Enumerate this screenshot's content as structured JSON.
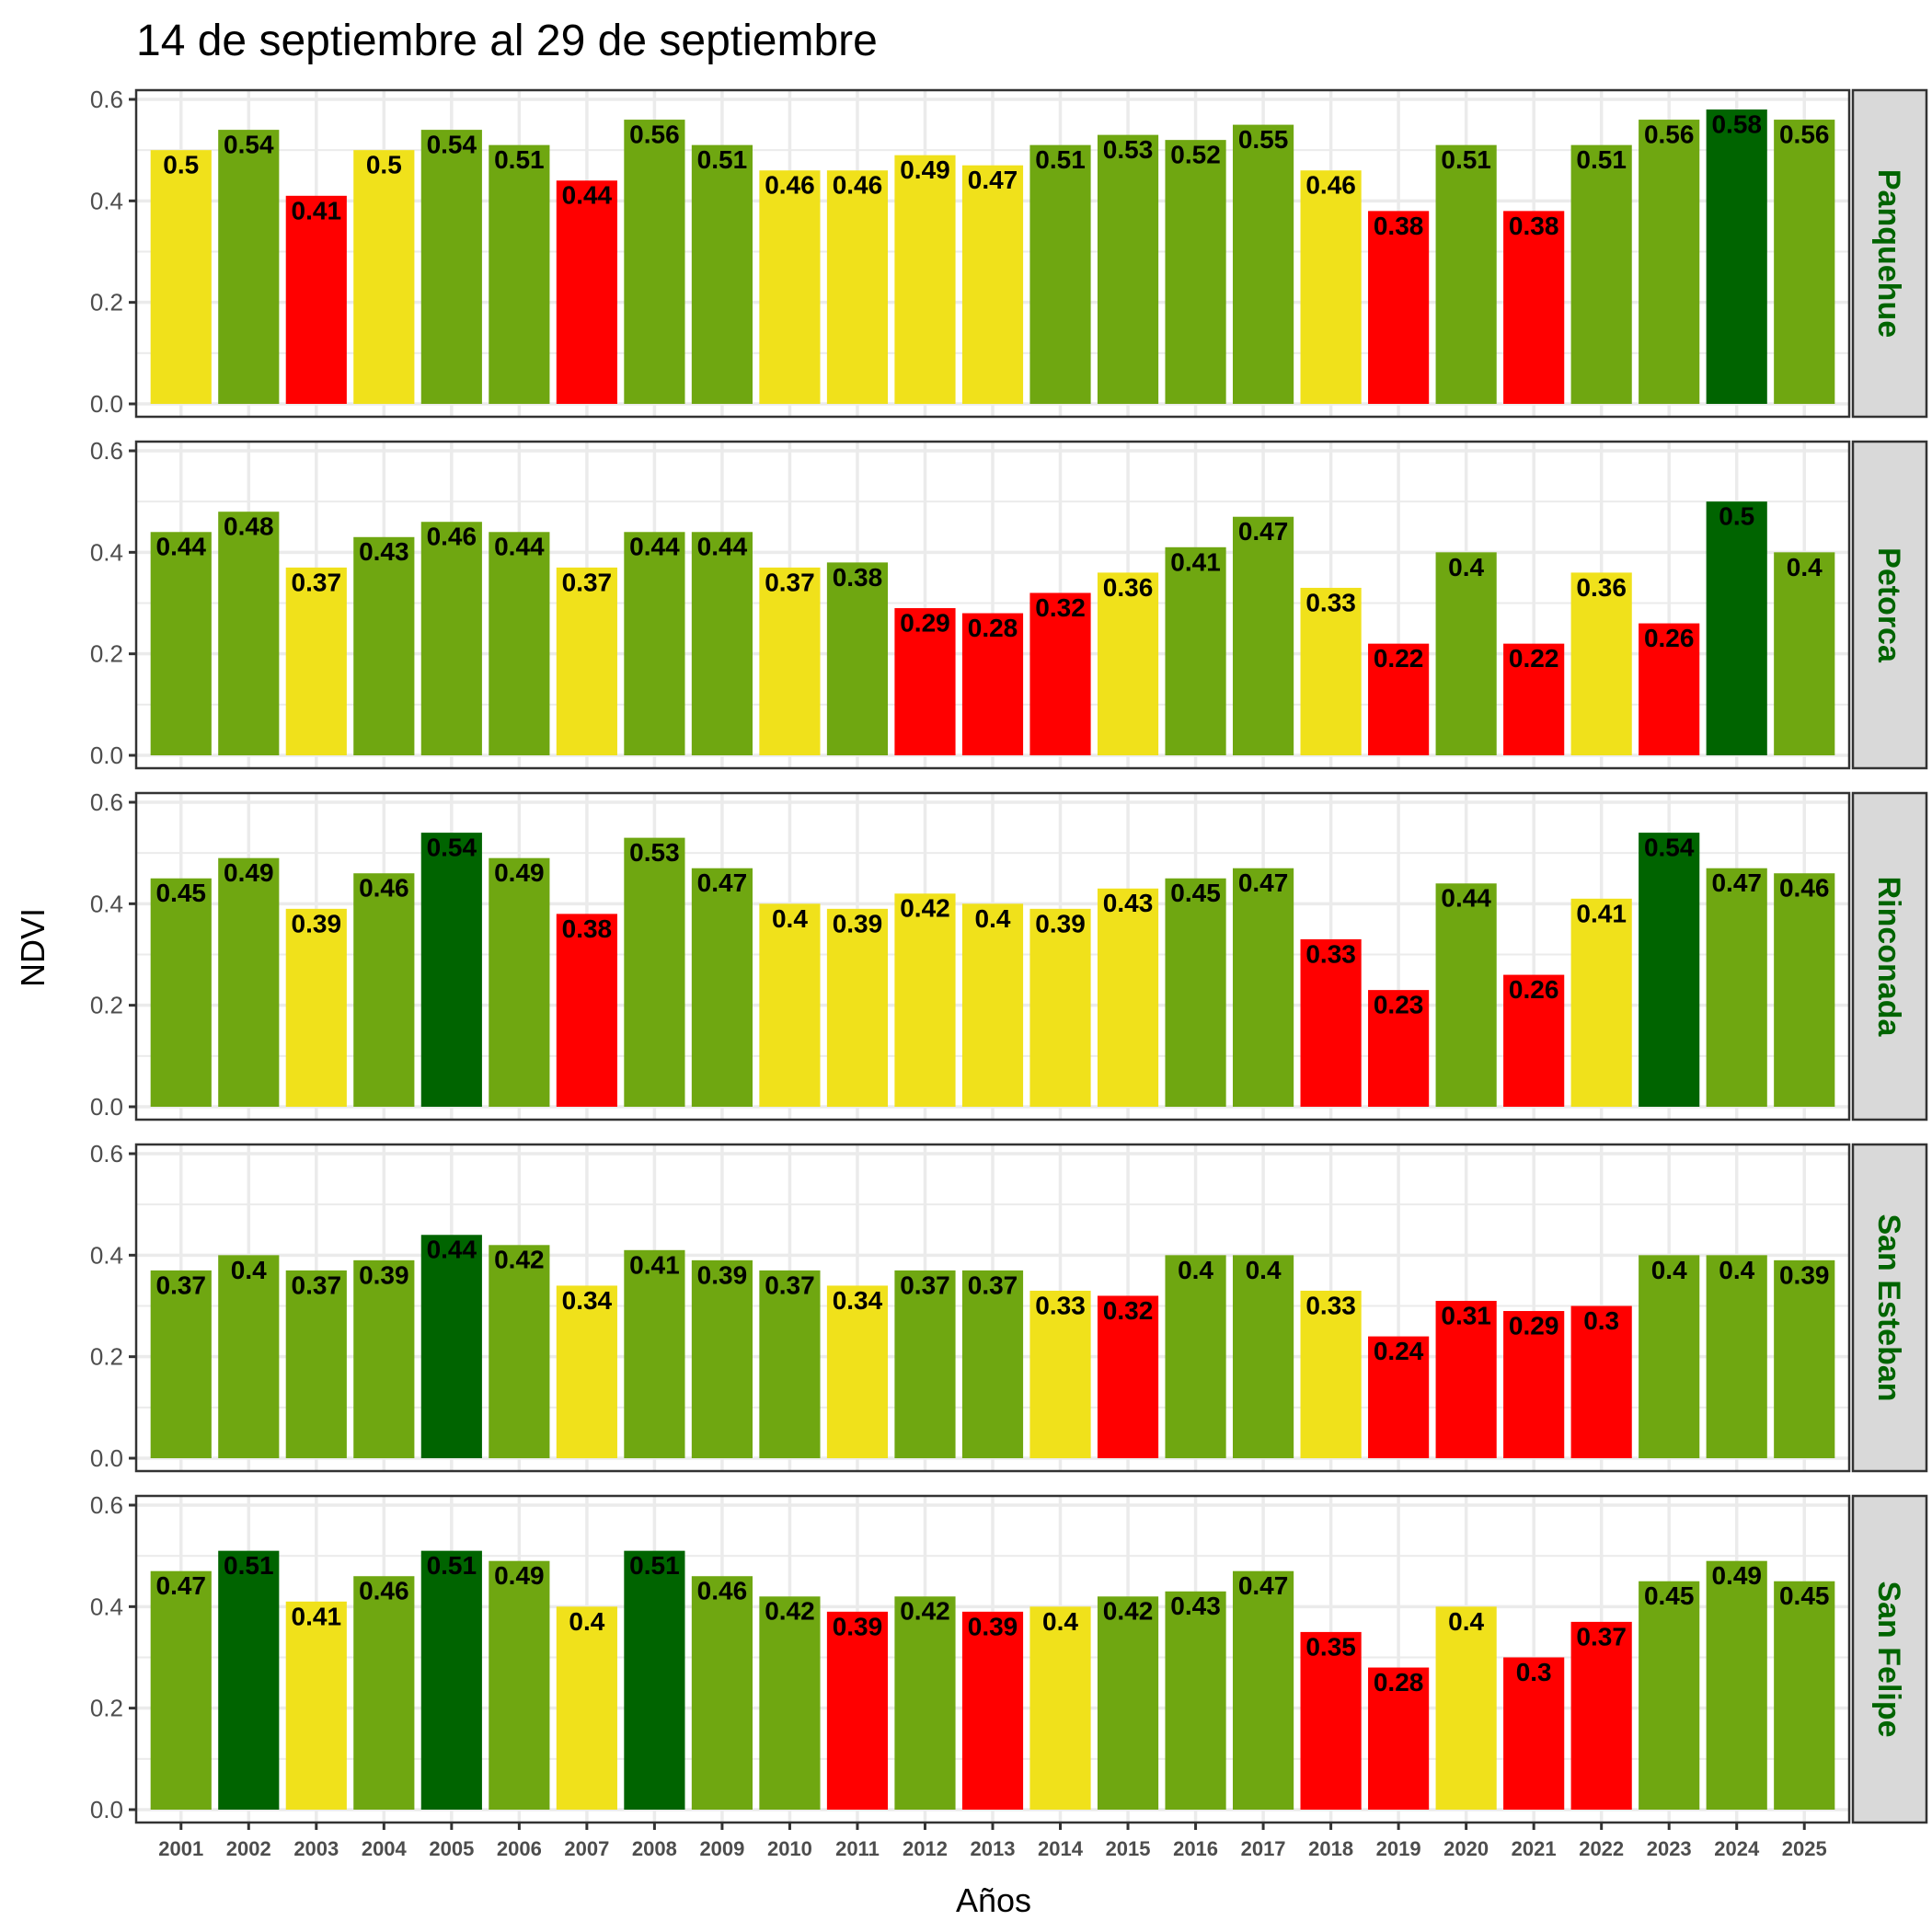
{
  "chart_data": {
    "type": "bar",
    "title": "14 de septiembre al 29 de septiembre",
    "xlabel": "Años",
    "ylabel": "NDVI",
    "ylim": [
      0,
      0.6
    ],
    "yticks": [
      "0.0",
      "0.2",
      "0.4",
      "0.6"
    ],
    "ytick_values": [
      0,
      0.2,
      0.4,
      0.6
    ],
    "grid": true,
    "facet_layout": "rows",
    "strip_position": "right",
    "strip_text_color": "#006400",
    "strip_fill": "#d9d9d9",
    "color_scale": {
      "red": "#ff0000",
      "yellow": "#f0e11b",
      "green": "#6fa711",
      "darkgreen": "#006400"
    },
    "categories": [
      "2001",
      "2002",
      "2003",
      "2004",
      "2005",
      "2006",
      "2007",
      "2008",
      "2009",
      "2010",
      "2011",
      "2012",
      "2013",
      "2014",
      "2015",
      "2016",
      "2017",
      "2018",
      "2019",
      "2020",
      "2021",
      "2022",
      "2023",
      "2024",
      "2025"
    ],
    "panels": [
      {
        "name": "Panquehue",
        "values": [
          0.5,
          0.54,
          0.41,
          0.5,
          0.54,
          0.51,
          0.44,
          0.56,
          0.51,
          0.46,
          0.46,
          0.49,
          0.47,
          0.51,
          0.53,
          0.52,
          0.55,
          0.46,
          0.38,
          0.51,
          0.38,
          0.51,
          0.56,
          0.58,
          0.56
        ],
        "labels": [
          "0.5",
          "0.54",
          "0.41",
          "0.5",
          "0.54",
          "0.51",
          "0.44",
          "0.56",
          "0.51",
          "0.46",
          "0.46",
          "0.49",
          "0.47",
          "0.51",
          "0.53",
          "0.52",
          "0.55",
          "0.46",
          "0.38",
          "0.51",
          "0.38",
          "0.51",
          "0.56",
          "0.58",
          "0.56"
        ],
        "colors": [
          "yellow",
          "green",
          "red",
          "yellow",
          "green",
          "green",
          "red",
          "green",
          "green",
          "yellow",
          "yellow",
          "yellow",
          "yellow",
          "green",
          "green",
          "green",
          "green",
          "yellow",
          "red",
          "green",
          "red",
          "green",
          "green",
          "darkgreen",
          "green"
        ]
      },
      {
        "name": "Petorca",
        "values": [
          0.44,
          0.48,
          0.37,
          0.43,
          0.46,
          0.44,
          0.37,
          0.44,
          0.44,
          0.37,
          0.38,
          0.29,
          0.28,
          0.32,
          0.36,
          0.41,
          0.47,
          0.33,
          0.22,
          0.4,
          0.22,
          0.36,
          0.26,
          0.5,
          0.4
        ],
        "labels": [
          "0.44",
          "0.48",
          "0.37",
          "0.43",
          "0.46",
          "0.44",
          "0.37",
          "0.44",
          "0.44",
          "0.37",
          "0.38",
          "0.29",
          "0.28",
          "0.32",
          "0.36",
          "0.41",
          "0.47",
          "0.33",
          "0.22",
          "0.4",
          "0.22",
          "0.36",
          "0.26",
          "0.5",
          "0.4"
        ],
        "colors": [
          "green",
          "green",
          "yellow",
          "green",
          "green",
          "green",
          "yellow",
          "green",
          "green",
          "yellow",
          "green",
          "red",
          "red",
          "red",
          "yellow",
          "green",
          "green",
          "yellow",
          "red",
          "green",
          "red",
          "yellow",
          "red",
          "darkgreen",
          "green"
        ]
      },
      {
        "name": "Rinconada",
        "values": [
          0.45,
          0.49,
          0.39,
          0.46,
          0.54,
          0.49,
          0.38,
          0.53,
          0.47,
          0.4,
          0.39,
          0.42,
          0.4,
          0.39,
          0.43,
          0.45,
          0.47,
          0.33,
          0.23,
          0.44,
          0.26,
          0.41,
          0.54,
          0.47,
          0.46
        ],
        "labels": [
          "0.45",
          "0.49",
          "0.39",
          "0.46",
          "0.54",
          "0.49",
          "0.38",
          "0.53",
          "0.47",
          "0.4",
          "0.39",
          "0.42",
          "0.4",
          "0.39",
          "0.43",
          "0.45",
          "0.47",
          "0.33",
          "0.23",
          "0.44",
          "0.26",
          "0.41",
          "0.54",
          "0.47",
          "0.46"
        ],
        "colors": [
          "green",
          "green",
          "yellow",
          "green",
          "darkgreen",
          "green",
          "red",
          "green",
          "green",
          "yellow",
          "yellow",
          "yellow",
          "yellow",
          "yellow",
          "yellow",
          "green",
          "green",
          "red",
          "red",
          "green",
          "red",
          "yellow",
          "darkgreen",
          "green",
          "green"
        ]
      },
      {
        "name": "San Esteban",
        "values": [
          0.37,
          0.4,
          0.37,
          0.39,
          0.44,
          0.42,
          0.34,
          0.41,
          0.39,
          0.37,
          0.34,
          0.37,
          0.37,
          0.33,
          0.32,
          0.4,
          0.4,
          0.33,
          0.24,
          0.31,
          0.29,
          0.3,
          0.4,
          0.4,
          0.39
        ],
        "labels": [
          "0.37",
          "0.4",
          "0.37",
          "0.39",
          "0.44",
          "0.42",
          "0.34",
          "0.41",
          "0.39",
          "0.37",
          "0.34",
          "0.37",
          "0.37",
          "0.33",
          "0.32",
          "0.4",
          "0.4",
          "0.33",
          "0.24",
          "0.31",
          "0.29",
          "0.3",
          "0.4",
          "0.4",
          "0.39"
        ],
        "colors": [
          "green",
          "green",
          "green",
          "green",
          "darkgreen",
          "green",
          "yellow",
          "green",
          "green",
          "green",
          "yellow",
          "green",
          "green",
          "yellow",
          "red",
          "green",
          "green",
          "yellow",
          "red",
          "red",
          "red",
          "red",
          "green",
          "green",
          "green"
        ]
      },
      {
        "name": "San Felipe",
        "values": [
          0.47,
          0.51,
          0.41,
          0.46,
          0.51,
          0.49,
          0.4,
          0.51,
          0.46,
          0.42,
          0.39,
          0.42,
          0.39,
          0.4,
          0.42,
          0.43,
          0.47,
          0.35,
          0.28,
          0.4,
          0.3,
          0.37,
          0.45,
          0.49,
          0.45
        ],
        "labels": [
          "0.47",
          "0.51",
          "0.41",
          "0.46",
          "0.51",
          "0.49",
          "0.4",
          "0.51",
          "0.46",
          "0.42",
          "0.39",
          "0.42",
          "0.39",
          "0.4",
          "0.42",
          "0.43",
          "0.47",
          "0.35",
          "0.28",
          "0.4",
          "0.3",
          "0.37",
          "0.45",
          "0.49",
          "0.45"
        ],
        "colors": [
          "green",
          "darkgreen",
          "yellow",
          "green",
          "darkgreen",
          "green",
          "yellow",
          "darkgreen",
          "green",
          "green",
          "red",
          "green",
          "red",
          "yellow",
          "green",
          "green",
          "green",
          "red",
          "red",
          "yellow",
          "red",
          "red",
          "green",
          "green",
          "green"
        ]
      }
    ]
  }
}
